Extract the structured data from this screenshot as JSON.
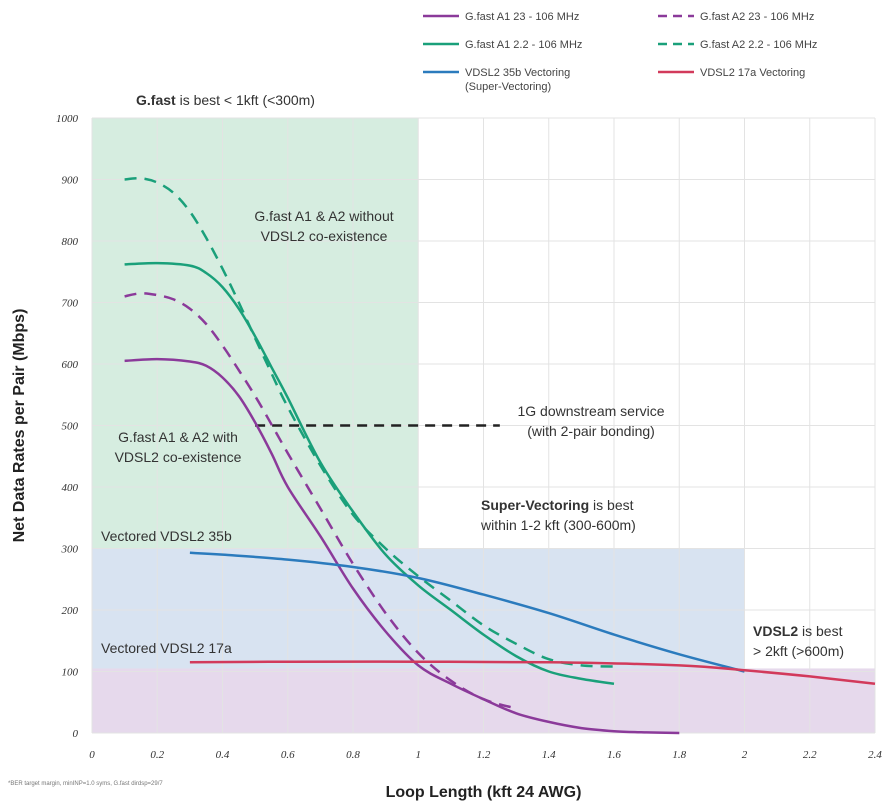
{
  "chart_data": {
    "type": "line",
    "xlabel": "Loop Length (kft 24 AWG)",
    "ylabel": "Net Data Rates per Pair (Mbps)",
    "xlim": [
      0,
      2.4
    ],
    "ylim": [
      0,
      1000
    ],
    "x_ticks": [
      "0",
      "0.2",
      "0.4",
      "0.6",
      "0.8",
      "1",
      "1.2",
      "1.4",
      "1.6",
      "1.8",
      "2",
      "2.2",
      "2.4"
    ],
    "y_ticks": [
      "0",
      "100",
      "200",
      "300",
      "400",
      "500",
      "600",
      "700",
      "800",
      "900",
      "1000"
    ],
    "grid": true,
    "legend": {
      "placement": "top-right",
      "entries": [
        "G.fast A1 23 - 106 MHz",
        "G.fast A2 23 - 106 MHz",
        "G.fast A1 2.2 - 106 MHz",
        "G.fast A2 2.2 - 106 MHz",
        "VDSL2 35b Vectoring (Super-Vectoring)",
        "VDSL2 17a Vectoring"
      ]
    },
    "regions": [
      {
        "x": [
          0,
          1
        ],
        "y": [
          0,
          1000
        ],
        "color": "#d6ede0"
      },
      {
        "x": [
          0,
          2
        ],
        "y": [
          0,
          300
        ],
        "color": "#d8e3f1"
      },
      {
        "x": [
          0,
          2.4
        ],
        "y": [
          0,
          105
        ],
        "color": "#e6d9ec"
      }
    ],
    "series": [
      {
        "name": "G.fast A1 23 - 106 MHz",
        "color": "#8b3a9a",
        "dash": false,
        "x": [
          0.1,
          0.2,
          0.3,
          0.35,
          0.4,
          0.45,
          0.5,
          0.55,
          0.6,
          0.7,
          0.8,
          0.9,
          1.0,
          1.1,
          1.2,
          1.3,
          1.4,
          1.5,
          1.6,
          1.7,
          1.8
        ],
        "y": [
          605,
          608,
          604,
          597,
          578,
          548,
          505,
          455,
          400,
          320,
          235,
          165,
          110,
          80,
          55,
          32,
          18,
          8,
          3,
          1,
          0
        ]
      },
      {
        "name": "G.fast A2 23 - 106 MHz",
        "color": "#8b3a9a",
        "dash": true,
        "x": [
          0.1,
          0.15,
          0.2,
          0.25,
          0.3,
          0.35,
          0.4,
          0.45,
          0.5,
          0.55,
          0.6,
          0.7,
          0.8,
          0.9,
          1.0,
          1.1,
          1.2,
          1.3
        ],
        "y": [
          710,
          715,
          712,
          705,
          690,
          665,
          630,
          590,
          548,
          502,
          455,
          365,
          275,
          195,
          130,
          85,
          55,
          40
        ]
      },
      {
        "name": "G.fast A1 2.2 - 106 MHz",
        "color": "#1aa07a",
        "dash": false,
        "x": [
          0.1,
          0.2,
          0.3,
          0.35,
          0.4,
          0.45,
          0.5,
          0.55,
          0.6,
          0.7,
          0.8,
          0.9,
          1.0,
          1.1,
          1.2,
          1.3,
          1.4,
          1.5,
          1.6
        ],
        "y": [
          762,
          764,
          760,
          748,
          725,
          690,
          645,
          595,
          545,
          440,
          360,
          290,
          240,
          200,
          160,
          125,
          100,
          88,
          80
        ]
      },
      {
        "name": "G.fast A2 2.2 - 106 MHz",
        "color": "#1aa07a",
        "dash": true,
        "x": [
          0.1,
          0.15,
          0.2,
          0.25,
          0.3,
          0.35,
          0.4,
          0.45,
          0.5,
          0.55,
          0.6,
          0.7,
          0.8,
          0.9,
          1.0,
          1.1,
          1.2,
          1.3,
          1.4,
          1.5,
          1.6
        ],
        "y": [
          900,
          902,
          895,
          878,
          848,
          805,
          755,
          700,
          642,
          585,
          530,
          435,
          355,
          300,
          255,
          215,
          175,
          145,
          120,
          110,
          108
        ]
      },
      {
        "name": "VDSL2 35b Vectoring (Super-Vectoring)",
        "color": "#2b7bbd",
        "dash": false,
        "x": [
          0.3,
          0.4,
          0.6,
          0.8,
          1.0,
          1.2,
          1.4,
          1.6,
          1.8,
          2.0
        ],
        "y": [
          293,
          290,
          282,
          270,
          252,
          225,
          195,
          160,
          128,
          100
        ]
      },
      {
        "name": "VDSL2 17a Vectoring",
        "color": "#d23a5b",
        "dash": false,
        "x": [
          0.3,
          0.6,
          1.0,
          1.4,
          1.8,
          2.0,
          2.2,
          2.4
        ],
        "y": [
          115,
          116,
          116,
          115,
          110,
          102,
          92,
          80
        ]
      }
    ],
    "reference_lines": [
      {
        "x": [
          0.5,
          1.25
        ],
        "y": [
          500,
          500
        ],
        "color": "#222222",
        "dash": true
      }
    ],
    "annotations": [
      {
        "id": "gfast-best",
        "bold": "G.fast",
        "text": " is best < 1kft (<300m)"
      },
      {
        "id": "without-coex",
        "lines": [
          "G.fast A1 & A2 without",
          "VDSL2 co-existence"
        ]
      },
      {
        "id": "with-coex",
        "lines": [
          "G.fast A1 & A2 with",
          "VDSL2 co-existence"
        ]
      },
      {
        "id": "downstream",
        "lines": [
          "1G downstream service",
          "(with 2-pair bonding)"
        ]
      },
      {
        "id": "super-vectoring-best",
        "bold": "Super-Vectoring",
        "text": " is best",
        "line2": "within 1-2 kft (300-600m)"
      },
      {
        "id": "vectored-35b",
        "text": "Vectored VDSL2 35b"
      },
      {
        "id": "vectored-17a",
        "text": "Vectored VDSL2 17a"
      },
      {
        "id": "vdsl2-best",
        "bold": "VDSL2",
        "text": " is best",
        "line2": "> 2kft (>600m)"
      }
    ],
    "footnote": "*BER target margin, minINP=1.0 syms, G.fast dirdsp=29/7"
  }
}
